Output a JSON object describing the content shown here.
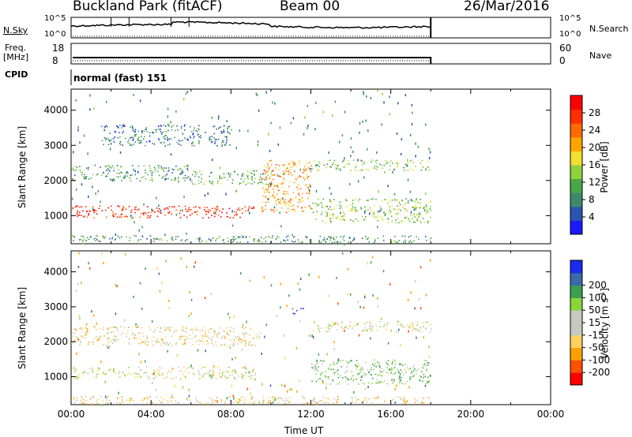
{
  "header": {
    "station": "Buckland Park (fitACF)",
    "beam": "Beam 00",
    "date": "26/Mar/2016"
  },
  "strip": {
    "nsky_label": "N.Sky",
    "nsky_ticks": [
      "10^5",
      "10^0"
    ],
    "nsearch_label": "N.Search",
    "nsearch_ticks": [
      "10^5",
      "10^0"
    ],
    "freq_label": "Freq.",
    "freq_unit": "[MHz]",
    "freq_ticks": [
      "18",
      "8"
    ],
    "nave_label": "Nave",
    "nave_ticks": [
      "60",
      "0"
    ],
    "cpid_label": "CPID",
    "cpid_value": "normal (fast) 151"
  },
  "colors": {
    "power_scale": [
      "#1a1aff",
      "#2b55b0",
      "#3d8a6a",
      "#47a84a",
      "#8fd23a",
      "#f2e030",
      "#ffa500",
      "#ff6a00",
      "#ff3000",
      "#ff0000"
    ],
    "velocity_scale": [
      "#ff0000",
      "#ff5000",
      "#ffa000",
      "#ffd060",
      "#c8c8c0",
      "#c8c8c0",
      "#8ad63a",
      "#3aa050",
      "#3a6aa8",
      "#1a2aee"
    ]
  },
  "chart_data": [
    {
      "type": "heatmap",
      "name": "power",
      "ylabel": "Slant Range [km]",
      "xlabel": "",
      "xlim": [
        0,
        24
      ],
      "ylim": [
        200,
        4600
      ],
      "yticks": [
        1000,
        2000,
        3000,
        4000
      ],
      "colorbar": {
        "label": "Power [dB]",
        "ticks": [
          4,
          8,
          12,
          16,
          20,
          24,
          28
        ],
        "range": [
          0,
          32
        ]
      },
      "echo_bands": [
        {
          "t_start": 0.0,
          "t_end": 9.2,
          "range_min": 950,
          "range_max": 1300,
          "value": 28
        },
        {
          "t_start": 0.0,
          "t_end": 6.0,
          "range_min": 2000,
          "range_max": 2450,
          "value": 10
        },
        {
          "t_start": 6.0,
          "t_end": 10.0,
          "range_min": 1900,
          "range_max": 2300,
          "value": 12
        },
        {
          "t_start": 12.0,
          "t_end": 18.0,
          "range_min": 800,
          "range_max": 1500,
          "value": 14
        },
        {
          "t_start": 12.0,
          "t_end": 18.0,
          "range_min": 2300,
          "range_max": 2600,
          "value": 13
        },
        {
          "t_start": 0.0,
          "t_end": 18.0,
          "range_min": 250,
          "range_max": 450,
          "value": 10
        },
        {
          "t_start": 1.5,
          "t_end": 8.0,
          "range_min": 3000,
          "range_max": 3600,
          "value": 7
        },
        {
          "t_start": 9.5,
          "t_end": 12.0,
          "range_min": 1100,
          "range_max": 2600,
          "value": 22
        }
      ]
    },
    {
      "type": "heatmap",
      "name": "velocity",
      "ylabel": "Slant Range [km]",
      "xlabel": "Time UT",
      "xlim": [
        0,
        24
      ],
      "ylim": [
        200,
        4600
      ],
      "yticks": [
        1000,
        2000,
        3000,
        4000
      ],
      "xticks": [
        "00:00",
        "04:00",
        "08:00",
        "12:00",
        "16:00",
        "20:00",
        "00:00"
      ],
      "colorbar": {
        "label": "Velocity [m s",
        "label_sup": "-1",
        "label_end": "]",
        "ticks": [
          -200,
          -100,
          -50,
          -15,
          15,
          50,
          100,
          200
        ]
      },
      "echo_bands": [
        {
          "t_start": 0.0,
          "t_end": 9.2,
          "range_min": 950,
          "range_max": 1300,
          "value": 0
        },
        {
          "t_start": 0.0,
          "t_end": 9.5,
          "range_min": 1900,
          "range_max": 2450,
          "value": -20
        },
        {
          "t_start": 12.0,
          "t_end": 18.0,
          "range_min": 800,
          "range_max": 1500,
          "value": 40
        },
        {
          "t_start": 12.0,
          "t_end": 18.0,
          "range_min": 2300,
          "range_max": 2600,
          "value": 0
        },
        {
          "t_start": 0.0,
          "t_end": 18.0,
          "range_min": 250,
          "range_max": 450,
          "value": -30
        },
        {
          "t_start": 11.0,
          "t_end": 11.6,
          "range_min": 2800,
          "range_max": 3000,
          "value": 220
        }
      ]
    }
  ]
}
